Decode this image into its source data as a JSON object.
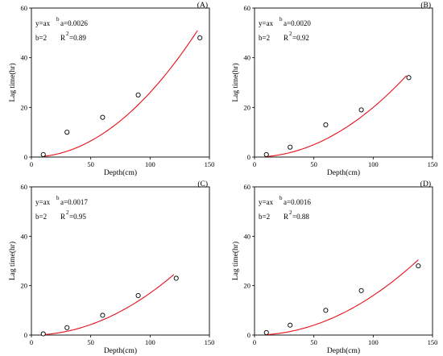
{
  "chart_data": [
    {
      "type": "scatter",
      "panel_label": "(A)",
      "points": [
        {
          "x": 10,
          "y": 1
        },
        {
          "x": 30,
          "y": 10
        },
        {
          "x": 60,
          "y": 16
        },
        {
          "x": 90,
          "y": 25
        },
        {
          "x": 142,
          "y": 48
        }
      ],
      "fit": {
        "a": 0.0026,
        "b": 2,
        "x_range": [
          10,
          140
        ]
      },
      "eq_lines": {
        "left1": "y=ax",
        "left1_sup": "b",
        "right1": "a=0.0026",
        "left2": "b=2",
        "right2_pre": "R",
        "right2_sup": "2",
        "right2_post": "=0.89"
      },
      "xlabel": "Depth(cm)",
      "ylabel": "Lag time(hr)",
      "xlim": [
        0,
        150
      ],
      "ylim": [
        0,
        60
      ],
      "xticks": [
        0,
        50,
        100,
        150
      ],
      "yticks": [
        0,
        20,
        40,
        60
      ],
      "xtick_labels": [
        "0",
        "50",
        "100",
        "150"
      ],
      "ytick_labels": [
        "0",
        "20",
        "40",
        "60"
      ]
    },
    {
      "type": "scatter",
      "panel_label": "(B)",
      "points": [
        {
          "x": 10,
          "y": 1
        },
        {
          "x": 30,
          "y": 4
        },
        {
          "x": 60,
          "y": 13
        },
        {
          "x": 90,
          "y": 19
        },
        {
          "x": 130,
          "y": 32
        }
      ],
      "fit": {
        "a": 0.002,
        "b": 2,
        "x_range": [
          10,
          128
        ]
      },
      "eq_lines": {
        "left1": "y=ax",
        "left1_sup": "b",
        "right1": "a=0.0020",
        "left2": "b=2",
        "right2_pre": "R",
        "right2_sup": "2",
        "right2_post": "=0.92"
      },
      "xlabel": "Depth(cm)",
      "ylabel": "Lag time(hr)",
      "xlim": [
        0,
        150
      ],
      "ylim": [
        0,
        60
      ],
      "xticks": [
        0,
        50,
        100,
        150
      ],
      "yticks": [
        0,
        20,
        40,
        60
      ],
      "xtick_labels": [
        "0",
        "50",
        "100",
        "150"
      ],
      "ytick_labels": [
        "0",
        "20",
        "40",
        "60"
      ]
    },
    {
      "type": "scatter",
      "panel_label": "(C)",
      "points": [
        {
          "x": 10,
          "y": 0.5
        },
        {
          "x": 30,
          "y": 3
        },
        {
          "x": 60,
          "y": 8
        },
        {
          "x": 90,
          "y": 16
        },
        {
          "x": 122,
          "y": 23
        }
      ],
      "fit": {
        "a": 0.0017,
        "b": 2,
        "x_range": [
          10,
          120
        ]
      },
      "eq_lines": {
        "left1": "y=ax",
        "left1_sup": "b",
        "right1": "a=0.0017",
        "left2": "b=2",
        "right2_pre": "R",
        "right2_sup": "2",
        "right2_post": "=0.95"
      },
      "xlabel": "Depth(cm)",
      "ylabel": "Lag time(hr)",
      "xlim": [
        0,
        150
      ],
      "ylim": [
        0,
        60
      ],
      "xticks": [
        0,
        50,
        100,
        150
      ],
      "yticks": [
        0,
        20,
        40,
        60
      ],
      "xtick_labels": [
        "0",
        "50",
        "100",
        "150"
      ],
      "ytick_labels": [
        "0",
        "20",
        "40",
        "60"
      ]
    },
    {
      "type": "scatter",
      "panel_label": "(D)",
      "points": [
        {
          "x": 10,
          "y": 1
        },
        {
          "x": 30,
          "y": 4
        },
        {
          "x": 60,
          "y": 10
        },
        {
          "x": 90,
          "y": 18
        },
        {
          "x": 138,
          "y": 28
        }
      ],
      "fit": {
        "a": 0.0016,
        "b": 2,
        "x_range": [
          10,
          138
        ]
      },
      "eq_lines": {
        "left1": "y=ax",
        "left1_sup": "b",
        "right1": "a=0.0016",
        "left2": "b=2",
        "right2_pre": "R",
        "right2_sup": "2",
        "right2_post": "=0.88"
      },
      "xlabel": "Depth(cm)",
      "ylabel": "Lag time(hr)",
      "xlim": [
        0,
        150
      ],
      "ylim": [
        0,
        60
      ],
      "xticks": [
        0,
        50,
        100,
        150
      ],
      "yticks": [
        0,
        20,
        40,
        60
      ],
      "xtick_labels": [
        "0",
        "50",
        "100",
        "150"
      ],
      "ytick_labels": [
        "0",
        "20",
        "40",
        "60"
      ]
    }
  ],
  "colors": {
    "fit_line": "#e8101a",
    "marker": "#000000",
    "axis": "#000000"
  }
}
